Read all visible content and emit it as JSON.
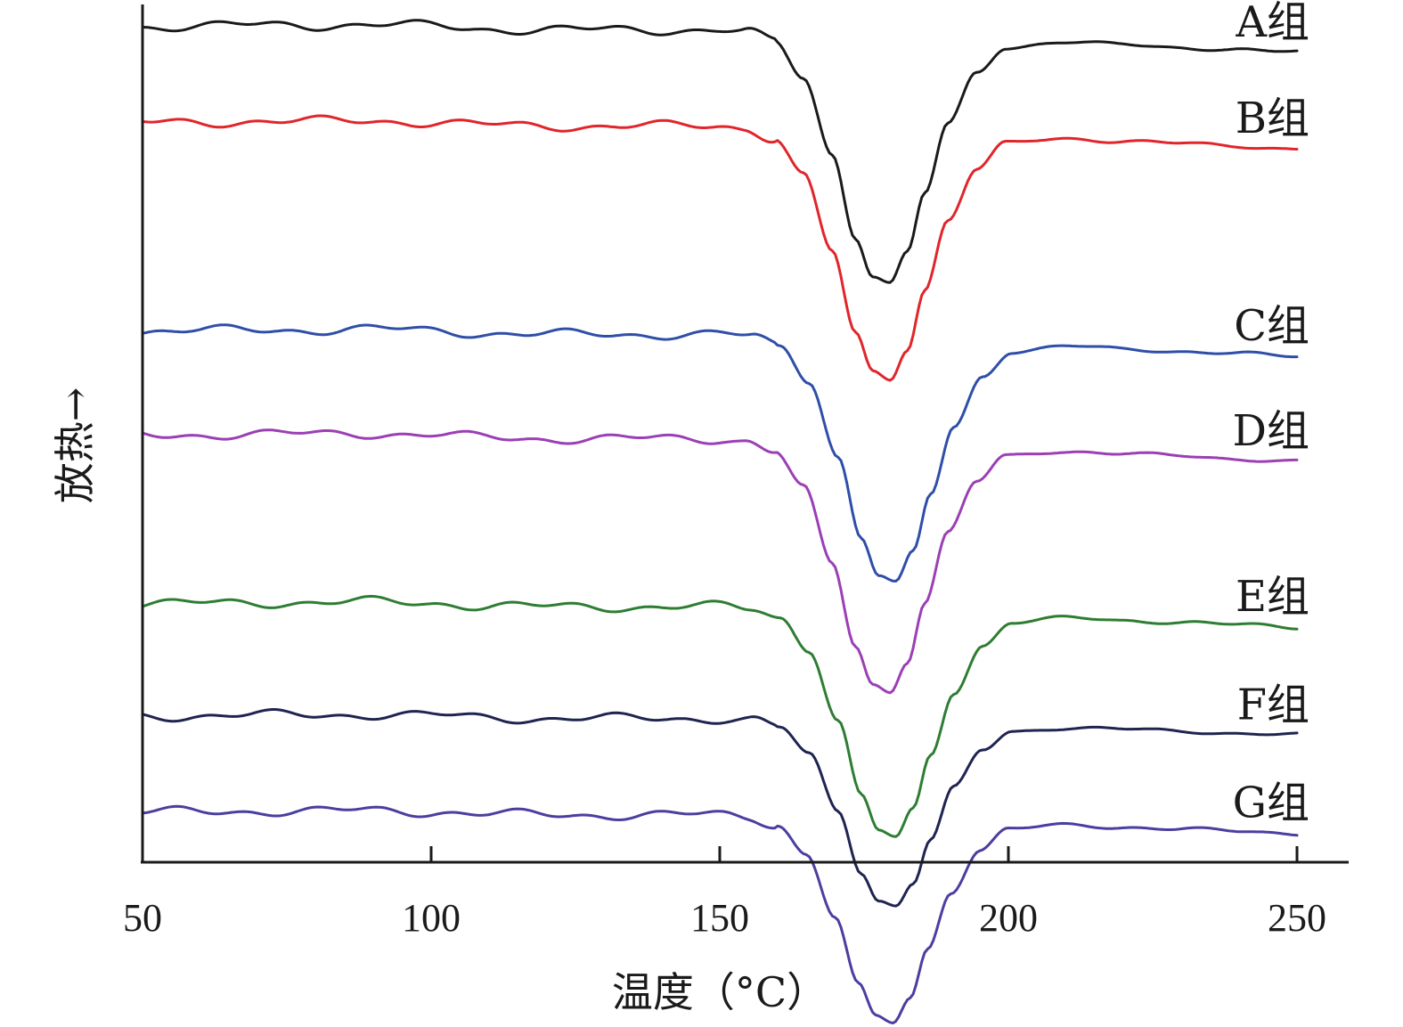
{
  "chart_data": {
    "type": "line",
    "xlabel": "温度（°C）",
    "ylabel": "放热→",
    "xlim": [
      50,
      255
    ],
    "xticks": [
      50,
      100,
      150,
      200,
      250
    ],
    "tick_labels": [
      "50",
      "100",
      "150",
      "200",
      "250"
    ],
    "y_axis_values_shown": false,
    "curve_shape": {
      "base_x": [
        50,
        60,
        70,
        80,
        90,
        100,
        110,
        120,
        130,
        140,
        150,
        155,
        160,
        165,
        170,
        174,
        177,
        180,
        183,
        186,
        190,
        195,
        200,
        210,
        220,
        230,
        240,
        250
      ],
      "base_y": [
        0,
        0.003,
        0.006,
        0.006,
        0.009,
        0.003,
        -0.008,
        -0.012,
        -0.012,
        -0.012,
        -0.012,
        -0.02,
        -0.06,
        -0.2,
        -0.5,
        -0.82,
        -0.97,
        -1.0,
        -0.88,
        -0.65,
        -0.38,
        -0.18,
        -0.08,
        -0.06,
        -0.07,
        -0.08,
        -0.09,
        -0.1
      ],
      "note": "Relative heat-flow profile; each series = offset + depth × profile."
    },
    "series": [
      {
        "name": "A组",
        "color": "#1a1a1a",
        "offset": 1.0,
        "depth": 1.0,
        "peak_x": 179.5
      },
      {
        "name": "B组",
        "color": "#e0252b",
        "offset": 0.88,
        "depth": 1.0,
        "peak_x": 179.5
      },
      {
        "name": "C组",
        "color": "#2f4ea8",
        "offset": 0.62,
        "depth": 0.98,
        "peak_x": 180.5
      },
      {
        "name": "D组",
        "color": "#9b3fb5",
        "offset": 0.49,
        "depth": 1.0,
        "peak_x": 179.5
      },
      {
        "name": "E组",
        "color": "#2e7d32",
        "offset": 0.28,
        "depth": 0.91,
        "peak_x": 180.5
      },
      {
        "name": "F组",
        "color": "#1f2450",
        "offset": 0.14,
        "depth": 0.74,
        "peak_x": 180.5
      },
      {
        "name": "G组",
        "color": "#4a3fa0",
        "offset": 0.02,
        "depth": 0.82,
        "peak_x": 180.0
      }
    ]
  }
}
